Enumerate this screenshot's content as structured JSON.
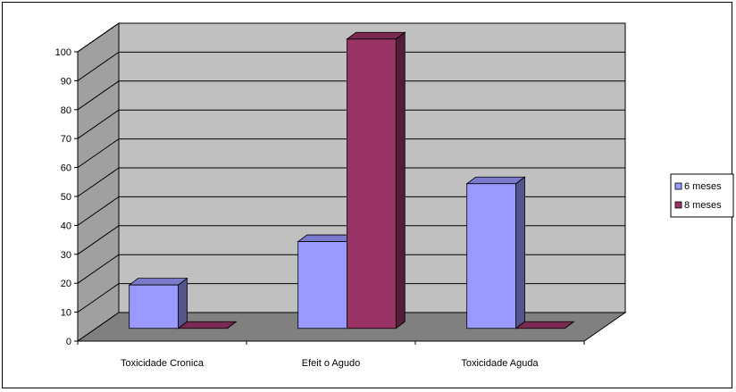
{
  "chart_data": {
    "type": "bar",
    "categories": [
      "Toxicidade Cronica",
      "Efeit o Agudo",
      "Toxicidade Aguda"
    ],
    "series": [
      {
        "name": "6 meses",
        "values": [
          15,
          30,
          50
        ],
        "color": "#9999ff"
      },
      {
        "name": "8 meses",
        "values": [
          0,
          100,
          0
        ],
        "color": "#993366"
      }
    ],
    "ylim": [
      0,
      100
    ],
    "yticks": [
      0,
      10,
      20,
      30,
      40,
      50,
      60,
      70,
      80,
      90,
      100
    ],
    "grid": true,
    "style": "3d-clustered",
    "legend_position": "right",
    "colors": {
      "back_wall": "#c0c0c0",
      "side_wall": "#a0a0a0",
      "floor": "#808080"
    }
  }
}
